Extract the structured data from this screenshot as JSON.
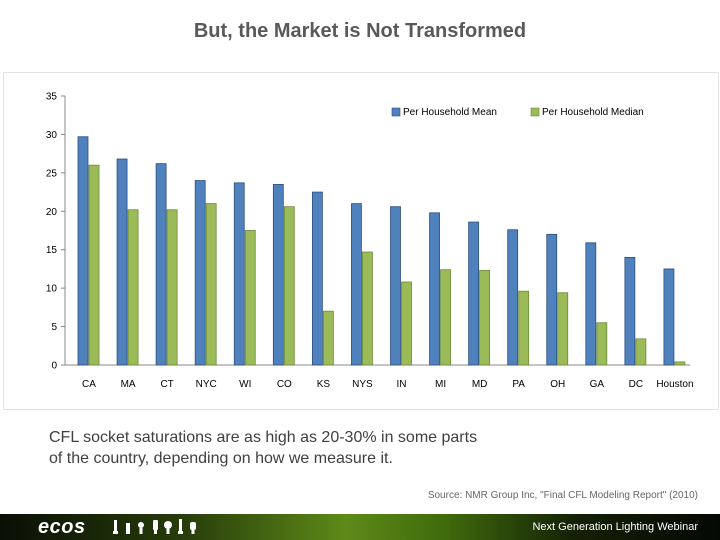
{
  "title": "But, the Market is Not Transformed",
  "caption_line1": "CFL socket saturations are as high as 20-30% in some parts",
  "caption_line2": "of the country, depending on how we measure it.",
  "source": "Source: NMR Group Inc, \"Final CFL Modeling Report\" (2010)",
  "footer": {
    "logo": "ecos",
    "tagline": "Next Generation Lighting Webinar"
  },
  "colors": {
    "mean": "#4f81bd",
    "median": "#9bbb59",
    "footer_accent": "#5d8a18"
  },
  "chart_data": {
    "type": "bar",
    "categories": [
      "CA",
      "MA",
      "CT",
      "NYC",
      "WI",
      "CO",
      "KS",
      "NYS",
      "IN",
      "MI",
      "MD",
      "PA",
      "OH",
      "GA",
      "DC",
      "Houston"
    ],
    "series": [
      {
        "name": "Per Household Mean",
        "values": [
          29.7,
          26.8,
          26.2,
          24.0,
          23.7,
          23.5,
          22.5,
          21.0,
          20.6,
          19.8,
          18.6,
          17.6,
          17.0,
          15.9,
          14.0,
          12.5
        ]
      },
      {
        "name": "Per Household Median",
        "values": [
          26.0,
          20.2,
          20.2,
          21.0,
          17.5,
          20.6,
          7.0,
          14.7,
          10.8,
          12.4,
          12.3,
          9.6,
          9.4,
          5.5,
          3.4,
          0.4
        ]
      }
    ],
    "yticks": [
      0,
      5,
      10,
      15,
      20,
      25,
      30,
      35
    ],
    "ylim": [
      0,
      35
    ],
    "ylabel": "",
    "xlabel": "",
    "grid": false,
    "legend_position": "top-right"
  }
}
